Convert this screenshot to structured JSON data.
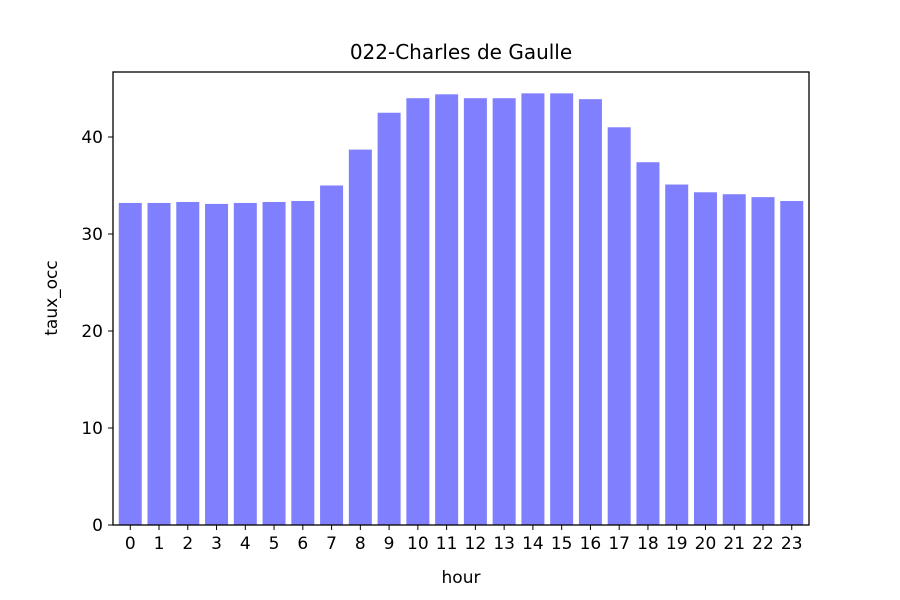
{
  "chart_data": {
    "type": "bar",
    "title": "022-Charles de Gaulle",
    "xlabel": "hour",
    "ylabel": "taux_occ",
    "categories": [
      "0",
      "1",
      "2",
      "3",
      "4",
      "5",
      "6",
      "7",
      "8",
      "9",
      "10",
      "11",
      "12",
      "13",
      "14",
      "15",
      "16",
      "17",
      "18",
      "19",
      "20",
      "21",
      "22",
      "23"
    ],
    "values": [
      33.2,
      33.2,
      33.3,
      33.1,
      33.2,
      33.3,
      33.4,
      35.0,
      38.7,
      42.5,
      44.0,
      44.4,
      44.0,
      44.0,
      44.5,
      44.5,
      43.9,
      41.0,
      37.4,
      35.1,
      34.3,
      34.1,
      33.8,
      33.4
    ],
    "yticks": [
      0,
      10,
      20,
      30,
      40
    ],
    "ylim": [
      0,
      46.7
    ],
    "grid": false,
    "colors": {
      "bar": "#8080ff",
      "axis": "#000000"
    }
  }
}
